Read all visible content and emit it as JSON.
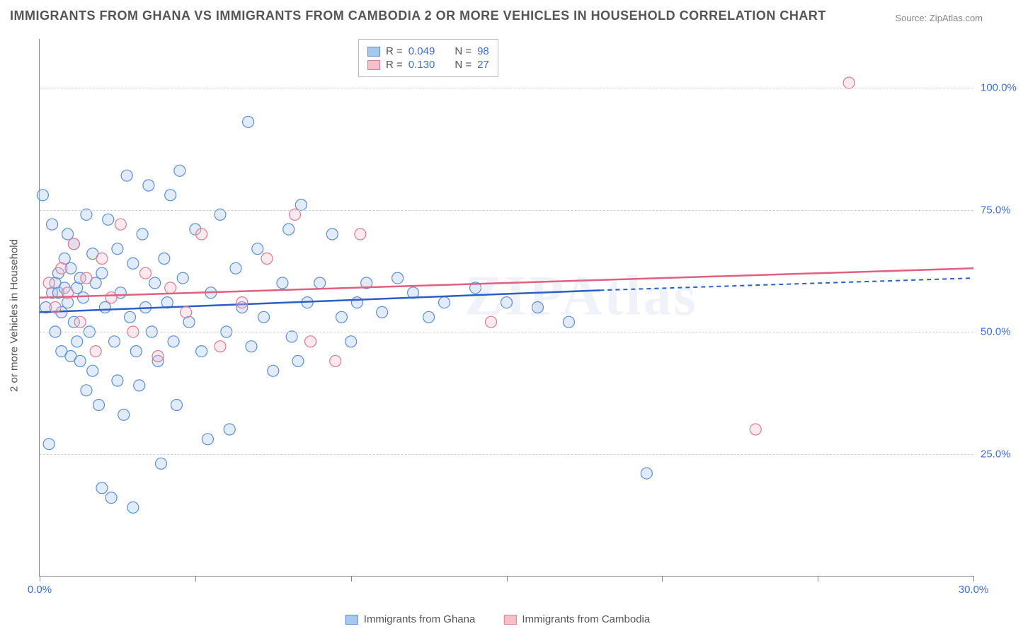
{
  "title": "IMMIGRANTS FROM GHANA VS IMMIGRANTS FROM CAMBODIA 2 OR MORE VEHICLES IN HOUSEHOLD CORRELATION CHART",
  "source_label": "Source: ZipAtlas.com",
  "y_axis_label": "2 or more Vehicles in Household",
  "watermark": "ZIPAtlas",
  "chart": {
    "type": "scatter",
    "xlim": [
      0,
      30
    ],
    "ylim": [
      0,
      110
    ],
    "x_ticks": [
      0,
      5,
      10,
      15,
      20,
      25,
      30
    ],
    "x_tick_labels": {
      "0": "0.0%",
      "30": "30.0%"
    },
    "y_grid": [
      25,
      50,
      75,
      100
    ],
    "y_tick_labels": {
      "25": "25.0%",
      "50": "50.0%",
      "75": "75.0%",
      "100": "100.0%"
    },
    "background_color": "#ffffff",
    "grid_color": "#d0d0d0",
    "axis_color": "#888888",
    "tick_label_color": "#3b6fd6",
    "marker_radius": 8,
    "marker_stroke_width": 1.2,
    "marker_fill_opacity": 0.35,
    "series": [
      {
        "name": "Immigrants from Ghana",
        "fill": "#a9c6ed",
        "stroke": "#5b8fd6",
        "line_color": "#2a5fc7",
        "R": "0.049",
        "N": "98",
        "trend": {
          "x1": 0,
          "y1": 54,
          "x2_solid": 18,
          "y2_solid": 58.5,
          "x2_dash": 30,
          "y2_dash": 61
        },
        "points": [
          [
            0.1,
            78
          ],
          [
            0.2,
            55
          ],
          [
            0.3,
            27
          ],
          [
            0.4,
            58
          ],
          [
            0.4,
            72
          ],
          [
            0.5,
            60
          ],
          [
            0.5,
            50
          ],
          [
            0.6,
            62
          ],
          [
            0.6,
            58
          ],
          [
            0.7,
            54
          ],
          [
            0.7,
            46
          ],
          [
            0.8,
            65
          ],
          [
            0.8,
            59
          ],
          [
            0.9,
            56
          ],
          [
            0.9,
            70
          ],
          [
            1.0,
            63
          ],
          [
            1.0,
            45
          ],
          [
            1.1,
            52
          ],
          [
            1.1,
            68
          ],
          [
            1.2,
            59
          ],
          [
            1.2,
            48
          ],
          [
            1.3,
            61
          ],
          [
            1.3,
            44
          ],
          [
            1.4,
            57
          ],
          [
            1.5,
            74
          ],
          [
            1.5,
            38
          ],
          [
            1.6,
            50
          ],
          [
            1.7,
            66
          ],
          [
            1.7,
            42
          ],
          [
            1.8,
            60
          ],
          [
            1.9,
            35
          ],
          [
            2.0,
            62
          ],
          [
            2.0,
            18
          ],
          [
            2.1,
            55
          ],
          [
            2.2,
            73
          ],
          [
            2.3,
            16
          ],
          [
            2.4,
            48
          ],
          [
            2.5,
            67
          ],
          [
            2.5,
            40
          ],
          [
            2.6,
            58
          ],
          [
            2.7,
            33
          ],
          [
            2.8,
            82
          ],
          [
            2.9,
            53
          ],
          [
            3.0,
            64
          ],
          [
            3.0,
            14
          ],
          [
            3.1,
            46
          ],
          [
            3.2,
            39
          ],
          [
            3.3,
            70
          ],
          [
            3.4,
            55
          ],
          [
            3.5,
            80
          ],
          [
            3.6,
            50
          ],
          [
            3.7,
            60
          ],
          [
            3.8,
            44
          ],
          [
            3.9,
            23
          ],
          [
            4.0,
            65
          ],
          [
            4.1,
            56
          ],
          [
            4.2,
            78
          ],
          [
            4.3,
            48
          ],
          [
            4.4,
            35
          ],
          [
            4.5,
            83
          ],
          [
            4.6,
            61
          ],
          [
            4.8,
            52
          ],
          [
            5.0,
            71
          ],
          [
            5.2,
            46
          ],
          [
            5.4,
            28
          ],
          [
            5.5,
            58
          ],
          [
            5.8,
            74
          ],
          [
            6.0,
            50
          ],
          [
            6.1,
            30
          ],
          [
            6.3,
            63
          ],
          [
            6.5,
            55
          ],
          [
            6.7,
            93
          ],
          [
            6.8,
            47
          ],
          [
            7.0,
            67
          ],
          [
            7.2,
            53
          ],
          [
            7.5,
            42
          ],
          [
            7.8,
            60
          ],
          [
            8.0,
            71
          ],
          [
            8.1,
            49
          ],
          [
            8.3,
            44
          ],
          [
            8.4,
            76
          ],
          [
            8.6,
            56
          ],
          [
            9.0,
            60
          ],
          [
            9.4,
            70
          ],
          [
            9.7,
            53
          ],
          [
            10.0,
            48
          ],
          [
            10.2,
            56
          ],
          [
            10.5,
            60
          ],
          [
            11.0,
            54
          ],
          [
            11.5,
            61
          ],
          [
            12.0,
            58
          ],
          [
            12.5,
            53
          ],
          [
            13.0,
            56
          ],
          [
            14.0,
            59
          ],
          [
            15.0,
            56
          ],
          [
            16.0,
            55
          ],
          [
            17.0,
            52
          ],
          [
            19.5,
            21
          ]
        ]
      },
      {
        "name": "Immigrants from Cambodia",
        "fill": "#f4c0ca",
        "stroke": "#e07a92",
        "line_color": "#e06080",
        "R": "0.130",
        "N": "27",
        "trend": {
          "x1": 0,
          "y1": 57,
          "x2_solid": 30,
          "y2_solid": 63,
          "x2_dash": 30,
          "y2_dash": 63
        },
        "points": [
          [
            0.3,
            60
          ],
          [
            0.5,
            55
          ],
          [
            0.7,
            63
          ],
          [
            0.9,
            58
          ],
          [
            1.1,
            68
          ],
          [
            1.3,
            52
          ],
          [
            1.5,
            61
          ],
          [
            1.8,
            46
          ],
          [
            2.0,
            65
          ],
          [
            2.3,
            57
          ],
          [
            2.6,
            72
          ],
          [
            3.0,
            50
          ],
          [
            3.4,
            62
          ],
          [
            3.8,
            45
          ],
          [
            4.2,
            59
          ],
          [
            4.7,
            54
          ],
          [
            5.2,
            70
          ],
          [
            5.8,
            47
          ],
          [
            6.5,
            56
          ],
          [
            7.3,
            65
          ],
          [
            8.2,
            74
          ],
          [
            8.7,
            48
          ],
          [
            9.5,
            44
          ],
          [
            10.3,
            70
          ],
          [
            14.5,
            52
          ],
          [
            23.0,
            30
          ],
          [
            26.0,
            101
          ]
        ]
      }
    ]
  },
  "legend_top": {
    "border_color": "#bbbbbb",
    "bg": "#ffffff",
    "label_r": "R =",
    "label_n": "N ="
  },
  "legend_bottom": {
    "items": [
      "Immigrants from Ghana",
      "Immigrants from Cambodia"
    ]
  }
}
